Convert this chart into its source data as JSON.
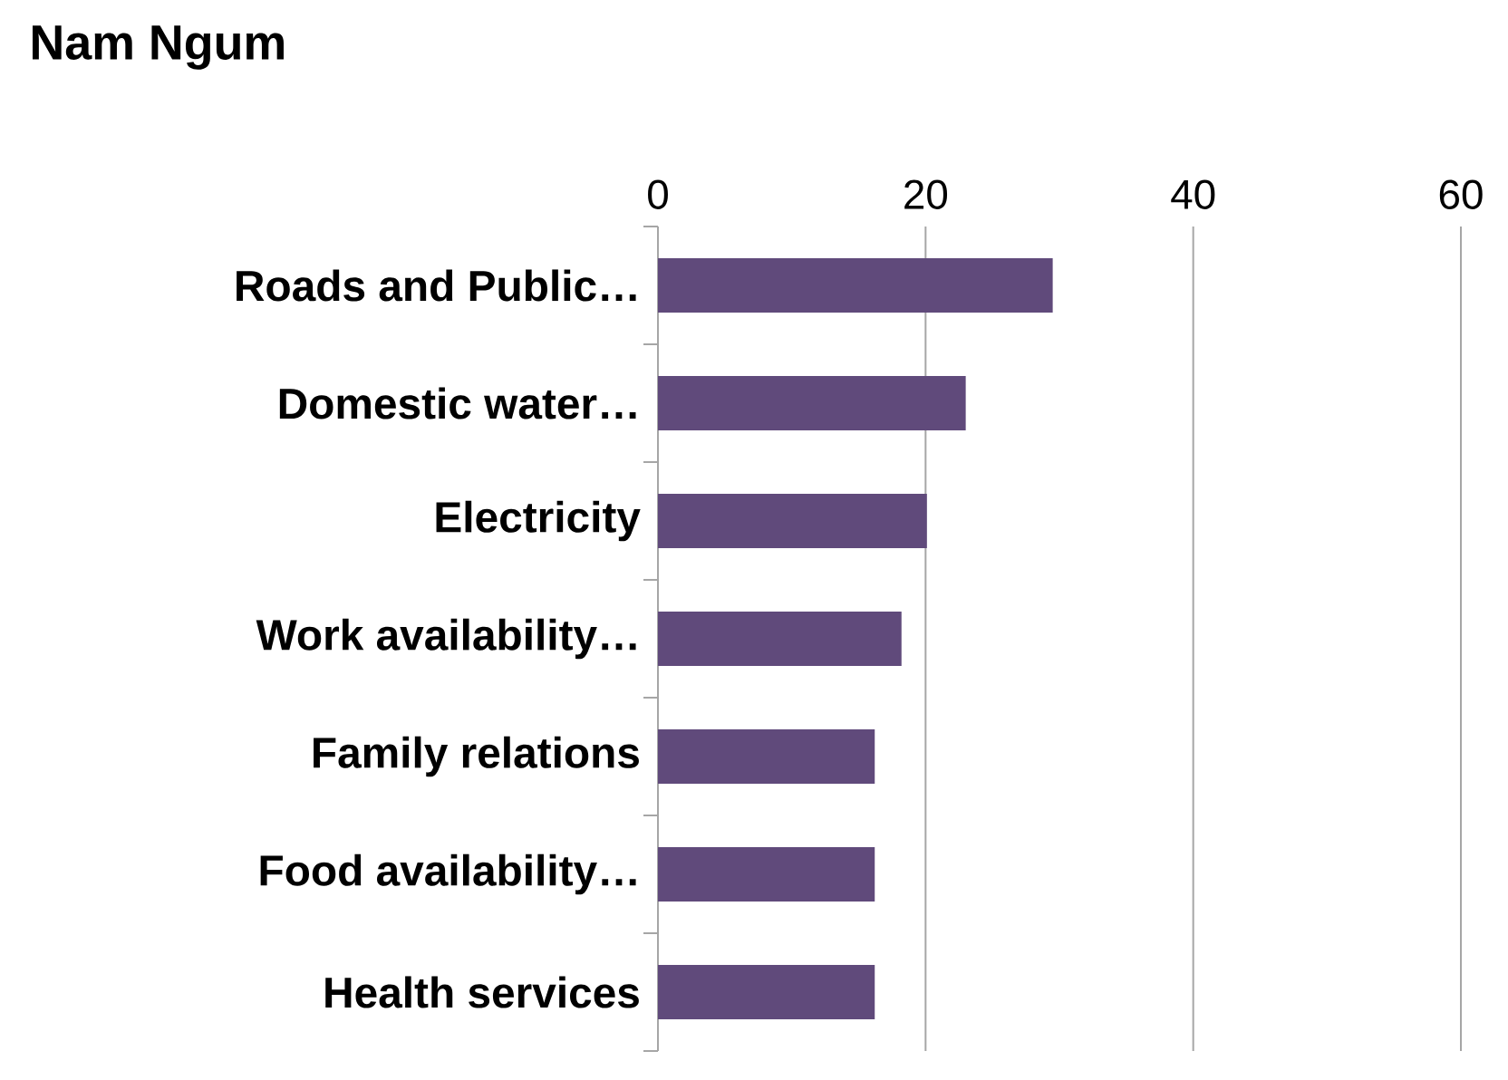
{
  "chart_data": {
    "type": "bar",
    "orientation": "horizontal",
    "title": "Nam Ngum",
    "categories": [
      "Roads and Public…",
      "Domestic water…",
      "Electricity",
      "Work availability…",
      "Family relations",
      "Food availability…",
      "Health services"
    ],
    "values": [
      29.5,
      23,
      20.1,
      18.2,
      16.2,
      16.2,
      16.2
    ],
    "color": "#604a7b",
    "xlim": [
      0,
      60
    ],
    "xticks": [
      0,
      20,
      40,
      60
    ],
    "grid": "x"
  }
}
